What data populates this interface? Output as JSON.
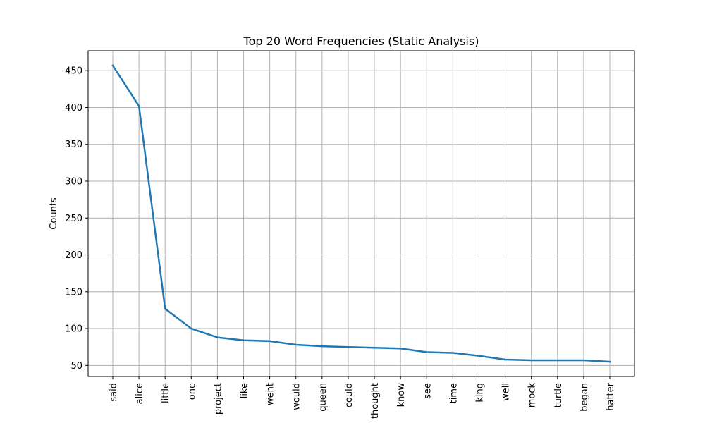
{
  "chart_data": {
    "type": "line",
    "title": "Top 20 Word Frequencies (Static Analysis)",
    "xlabel": "",
    "ylabel": "Counts",
    "categories": [
      "said",
      "alice",
      "little",
      "one",
      "project",
      "like",
      "went",
      "would",
      "queen",
      "could",
      "thought",
      "know",
      "see",
      "time",
      "king",
      "well",
      "mock",
      "turtle",
      "began",
      "hatter"
    ],
    "values": [
      457,
      402,
      127,
      100,
      88,
      84,
      83,
      78,
      76,
      75,
      74,
      73,
      68,
      67,
      63,
      58,
      57,
      57,
      57,
      55
    ],
    "ylim": [
      35,
      477
    ],
    "yticks": [
      50,
      100,
      150,
      200,
      250,
      300,
      350,
      400,
      450
    ],
    "grid": true,
    "legend": "none",
    "line_color": "#1f77b4",
    "grid_color": "#b0b0b0"
  }
}
